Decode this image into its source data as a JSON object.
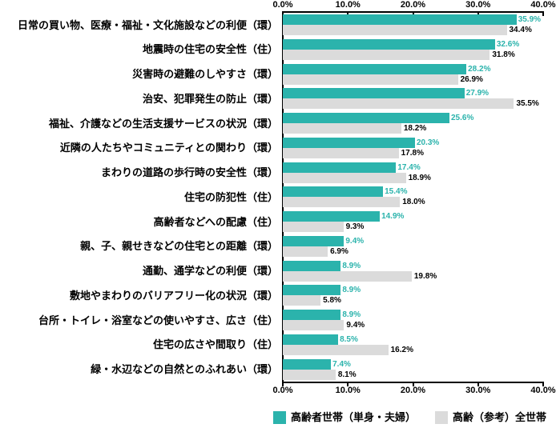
{
  "chart_data": {
    "type": "bar",
    "orientation": "horizontal",
    "title": "",
    "grid": false,
    "legend_position": "bottom-right",
    "x_axis": {
      "min": 0,
      "max": 40,
      "tick_values": [
        0,
        10,
        20,
        30,
        40
      ],
      "tick_labels": [
        "0.0%",
        "10.0%",
        "20.0%",
        "30.0%",
        "40.0%"
      ],
      "shown": "top-and-bottom"
    },
    "categories": [
      "日常の買い物、医療・福祉・文化施設などの利便（環）",
      "地震時の住宅の安全性（住）",
      "災害時の避難のしやすさ（環）",
      "治安、犯罪発生の防止（環）",
      "福祉、介護などの生活支援サービスの状況（環）",
      "近隣の人たちやコミュニティとの関わり（環）",
      "まわりの道路の歩行時の安全性（環）",
      "住宅の防犯性（住）",
      "高齢者などへの配慮（住）",
      "親、子、親せきなどの住宅との距離（環）",
      "通勤、通学などの利便（環）",
      "敷地やまわりのバリアフリー化の状況（環）",
      "台所・トイレ・浴室などの使いやすさ、広さ（住）",
      "住宅の広さや間取り（住）",
      "緑・水辺などの自然とのふれあい（環）"
    ],
    "series": [
      {
        "name": "高齢者世帯（単身・夫婦）",
        "color": "#2BB3AC",
        "value_label_color": "#2BB3AC",
        "values": [
          35.9,
          32.6,
          28.2,
          27.9,
          25.6,
          20.3,
          17.4,
          15.4,
          14.9,
          9.4,
          8.9,
          8.9,
          8.9,
          8.5,
          7.4
        ]
      },
      {
        "name": "高齢（参考）全世帯",
        "color": "#DBDBDB",
        "value_label_color": "#000000",
        "values": [
          34.4,
          31.8,
          26.9,
          35.5,
          18.2,
          17.8,
          18.9,
          18.0,
          9.3,
          6.9,
          19.8,
          5.8,
          9.4,
          16.2,
          8.1
        ]
      }
    ],
    "value_label_format": "one_decimal_percent"
  },
  "colors": {
    "axis": "#000000",
    "background": "#FFFFFF"
  }
}
